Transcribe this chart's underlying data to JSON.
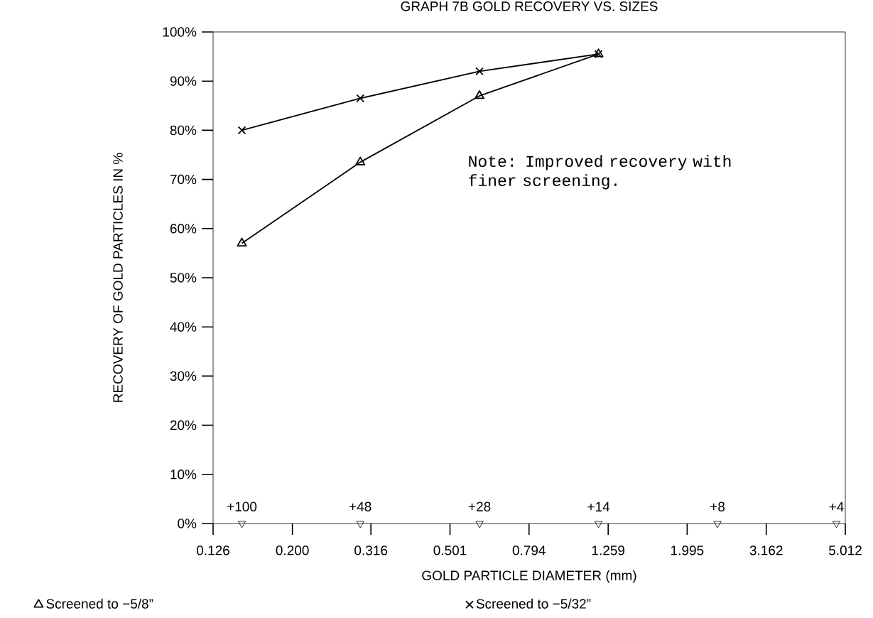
{
  "chart_data": {
    "type": "line",
    "title": "GRAPH 7B GOLD RECOVERY VS. SIZES",
    "xlabel": "GOLD PARTICLE DIAMETER (mm)",
    "ylabel": "RECOVERY OF GOLD PARTICLES IN %",
    "log": "x",
    "xlim": [
      0.126,
      5.012
    ],
    "ylim": [
      0,
      100
    ],
    "xticks": [
      {
        "value": 0.126,
        "label": "0.126"
      },
      {
        "value": 0.2,
        "label": "0.200"
      },
      {
        "value": 0.316,
        "label": "0.316"
      },
      {
        "value": 0.501,
        "label": "0.501"
      },
      {
        "value": 0.794,
        "label": "0.794"
      },
      {
        "value": 1.259,
        "label": "1.259"
      },
      {
        "value": 1.995,
        "label": "1.995"
      },
      {
        "value": 3.162,
        "label": "3.162"
      },
      {
        "value": 5.012,
        "label": "5.012"
      }
    ],
    "yticks": [
      {
        "value": 0,
        "label": "0%"
      },
      {
        "value": 10,
        "label": "10%"
      },
      {
        "value": 20,
        "label": "20%"
      },
      {
        "value": 30,
        "label": "30%"
      },
      {
        "value": 40,
        "label": "40%"
      },
      {
        "value": 50,
        "label": "50%"
      },
      {
        "value": 60,
        "label": "60%"
      },
      {
        "value": 70,
        "label": "70%"
      },
      {
        "value": 80,
        "label": "80%"
      },
      {
        "value": 90,
        "label": "90%"
      },
      {
        "value": 100,
        "label": "100%"
      }
    ],
    "grid": false,
    "legend": "bottom",
    "series": [
      {
        "name": "Screened to −5/8”",
        "color": "#000000",
        "marker": "triangle",
        "x": [
          0.149,
          0.297,
          0.595,
          1.19
        ],
        "values": [
          57,
          73.5,
          87,
          95.5
        ]
      },
      {
        "name": "Screened to −5/32”",
        "color": "#000000",
        "marker": "cross",
        "x": [
          0.149,
          0.297,
          0.595,
          1.19
        ],
        "values": [
          80,
          86.5,
          92,
          95.5
        ]
      },
      {
        "type": "scatter",
        "color": "#000000",
        "marker": "triangle down",
        "x": [
          0.149,
          0.297,
          0.595,
          1.19,
          2.38,
          4.76
        ],
        "values": [
          0,
          0,
          0,
          0,
          0,
          0
        ]
      }
    ],
    "annotations": [
      "Note: Improved recovery with finer screening.",
      {
        "text": "+100",
        "x": 0.149,
        "y": 0
      },
      {
        "text": "+48",
        "x": 0.297,
        "y": 0
      },
      {
        "text": "+28",
        "x": 0.595,
        "y": 0
      },
      {
        "text": "+14",
        "x": 1.19,
        "y": 0
      },
      {
        "text": "+8",
        "x": 2.38,
        "y": 0
      },
      {
        "text": "+4",
        "x": 4.76,
        "y": 0
      }
    ]
  }
}
